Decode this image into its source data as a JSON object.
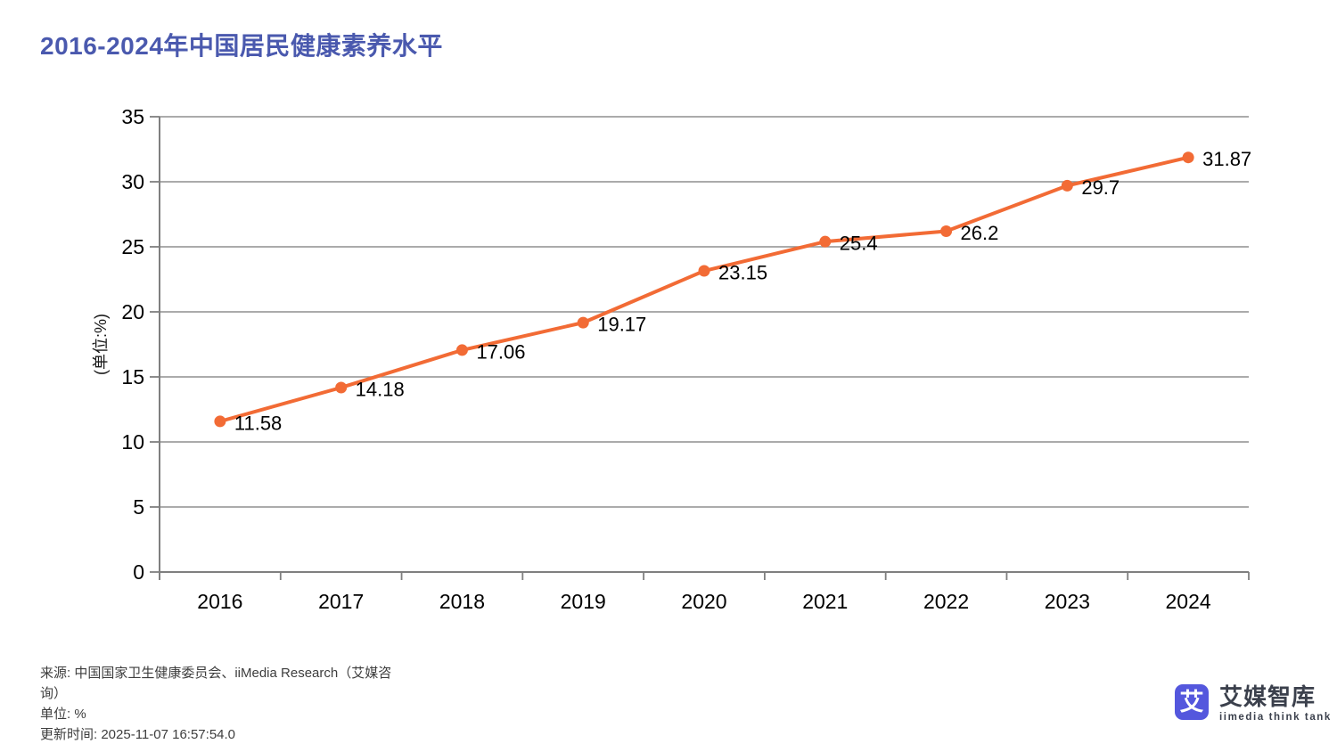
{
  "title": {
    "text": "2016-2024年中国居民健康素养水平",
    "color": "#4A59AE"
  },
  "chart_data": {
    "type": "line",
    "title": "2016-2024年中国居民健康素养水平",
    "categories": [
      "2016",
      "2017",
      "2018",
      "2019",
      "2020",
      "2021",
      "2022",
      "2023",
      "2024"
    ],
    "values": [
      11.58,
      14.18,
      17.06,
      19.17,
      23.15,
      25.4,
      26.2,
      29.7,
      31.87
    ],
    "value_labels": [
      "11.58",
      "14.18",
      "17.06",
      "19.17",
      "23.15",
      "25.4",
      "26.2",
      "29.7",
      "31.87"
    ],
    "xlabel": "",
    "ylabel": "(单位:%)",
    "ylim": [
      0,
      35
    ],
    "ytick_step": 5,
    "yticks": [
      0,
      5,
      10,
      15,
      20,
      25,
      30,
      35
    ],
    "grid": true,
    "legend": false,
    "line_color": "#F26B35",
    "point_color": "#F26B35",
    "gridline_color": "#8F8F8F",
    "axis_color": "#7F7F7F",
    "tick_label_color": "#000000",
    "value_label_color": "#000000"
  },
  "footer": {
    "source_lines": [
      "来源: 中国国家卫生健康委员会、iiMedia Research（艾媒咨",
      "询）"
    ],
    "unit_line": "单位: %",
    "updated_line": "更新时间: 2025-11-07 16:57:54.0"
  },
  "logo": {
    "icon_char": "艾",
    "icon_color": "#5457DD",
    "name": "艾媒智库",
    "tagline": "iimedia think tank",
    "text_color": "#3B404C"
  }
}
